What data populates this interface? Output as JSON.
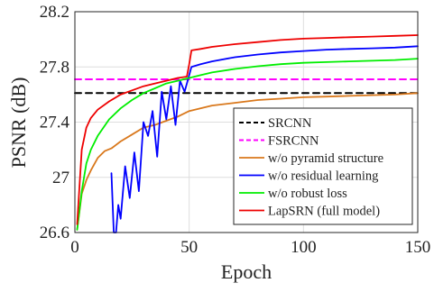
{
  "chart_data": {
    "type": "line",
    "xlabel": "Epoch",
    "ylabel": "PSNR (dB)",
    "xlim": [
      0,
      150
    ],
    "ylim": [
      26.6,
      28.2
    ],
    "xticks": [
      0,
      50,
      100,
      150
    ],
    "xtick_labels": [
      "0",
      "50",
      "100",
      "150"
    ],
    "yticks": [
      26.6,
      27,
      27.4,
      27.8,
      28.2
    ],
    "ytick_labels": [
      "26.6",
      "27",
      "27.4",
      "27.8",
      "28.2"
    ],
    "grid": true,
    "legend_position": "bottom-right",
    "series": [
      {
        "name": "SRCNN",
        "color": "#000000",
        "style": "dashed",
        "x": [
          0,
          150
        ],
        "y": [
          27.61,
          27.61
        ]
      },
      {
        "name": "FSRCNN",
        "color": "#ff00ff",
        "style": "dashed",
        "x": [
          0,
          150
        ],
        "y": [
          27.71,
          27.71
        ]
      },
      {
        "name": "w/o pyramid structure",
        "color": "#d9781c",
        "style": "solid",
        "x": [
          1,
          3,
          5,
          7,
          10,
          13,
          16,
          20,
          25,
          30,
          35,
          40,
          45,
          50,
          60,
          70,
          80,
          90,
          100,
          110,
          120,
          130,
          140,
          150
        ],
        "y": [
          26.62,
          26.88,
          26.98,
          27.05,
          27.14,
          27.19,
          27.21,
          27.26,
          27.31,
          27.36,
          27.38,
          27.41,
          27.44,
          27.48,
          27.52,
          27.54,
          27.56,
          27.57,
          27.58,
          27.585,
          27.59,
          27.595,
          27.6,
          27.61
        ]
      },
      {
        "name": "w/o residual learning",
        "color": "#0000ff",
        "style": "solid",
        "x": [
          16,
          17,
          18,
          19,
          20,
          22,
          24,
          26,
          28,
          30,
          32,
          34,
          36,
          38,
          40,
          42,
          44,
          46,
          48,
          50,
          51,
          55,
          60,
          70,
          80,
          90,
          100,
          110,
          120,
          130,
          140,
          150
        ],
        "y": [
          27.03,
          26.5,
          26.5,
          26.8,
          26.7,
          27.08,
          26.85,
          27.18,
          26.9,
          27.4,
          27.3,
          27.48,
          27.15,
          27.62,
          27.42,
          27.66,
          27.38,
          27.7,
          27.62,
          27.74,
          27.8,
          27.82,
          27.84,
          27.87,
          27.89,
          27.905,
          27.915,
          27.925,
          27.93,
          27.935,
          27.94,
          27.95
        ]
      },
      {
        "name": "w/o robust loss",
        "color": "#00ee00",
        "style": "solid",
        "x": [
          1,
          3,
          5,
          7,
          10,
          15,
          20,
          25,
          30,
          35,
          40,
          45,
          50,
          55,
          60,
          70,
          80,
          90,
          100,
          110,
          120,
          130,
          140,
          150
        ],
        "y": [
          26.62,
          26.9,
          27.1,
          27.2,
          27.3,
          27.42,
          27.5,
          27.56,
          27.61,
          27.645,
          27.68,
          27.7,
          27.72,
          27.74,
          27.76,
          27.785,
          27.805,
          27.82,
          27.83,
          27.835,
          27.84,
          27.845,
          27.85,
          27.86
        ]
      },
      {
        "name": "LapSRN (full model)",
        "color": "#ee0000",
        "style": "solid",
        "x": [
          1,
          3,
          5,
          7,
          10,
          15,
          20,
          25,
          30,
          35,
          40,
          45,
          49,
          50,
          51,
          55,
          60,
          70,
          80,
          90,
          100,
          110,
          120,
          130,
          140,
          150
        ],
        "y": [
          26.66,
          27.2,
          27.36,
          27.43,
          27.49,
          27.55,
          27.6,
          27.63,
          27.66,
          27.68,
          27.7,
          27.72,
          27.73,
          27.82,
          27.92,
          27.93,
          27.945,
          27.965,
          27.98,
          27.995,
          28.005,
          28.01,
          28.015,
          28.02,
          28.025,
          28.03
        ]
      }
    ]
  }
}
